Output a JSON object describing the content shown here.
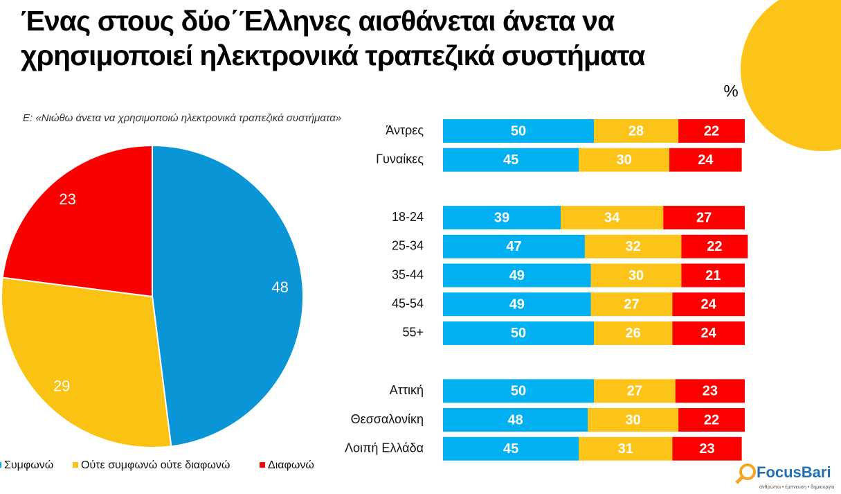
{
  "title": "Ένας στους δύο΄Έλληνες αισθάνεται άνετα να χρησιμοποιεί ηλεκτρονικά τραπεζικά συστήματα",
  "question": "Ε: «Νιώθω άνετα να χρησιμοποιώ ηλεκτρονικά τραπεζικά συστήματα»",
  "unit": "%",
  "logo": {
    "name": "FocusBari",
    "tagline": "άνθρωποι • έμπνευση • δημιουργία"
  },
  "chart_data": [
    {
      "type": "pie",
      "values": [
        48,
        29,
        23
      ],
      "colors": [
        "#0a96d6",
        "#fac313",
        "#fa0000"
      ]
    },
    {
      "type": "stacked-bar-horizontal",
      "categories": [
        "Άντρες",
        "Γυναίκες",
        null,
        "18-24",
        "25-34",
        "35-44",
        "45-54",
        "55+",
        null,
        "Αττική",
        "Θεσσαλονίκη",
        "Λοιπή Ελλάδα"
      ],
      "xlim": [
        0,
        100
      ],
      "series": [
        {
          "name": "Συμφωνώ",
          "color": "#00b0f0",
          "values": [
            50,
            45,
            null,
            39,
            47,
            49,
            49,
            50,
            null,
            50,
            48,
            45
          ]
        },
        {
          "name": "Ούτε συμφωνώ ούτε διαφωνώ",
          "color": "#fcc419",
          "values": [
            28,
            30,
            null,
            34,
            32,
            30,
            27,
            26,
            null,
            27,
            30,
            31
          ]
        },
        {
          "name": "Διαφωνώ",
          "color": "#ff0000",
          "values": [
            22,
            24,
            null,
            27,
            22,
            21,
            24,
            24,
            null,
            23,
            22,
            23
          ]
        }
      ]
    }
  ]
}
